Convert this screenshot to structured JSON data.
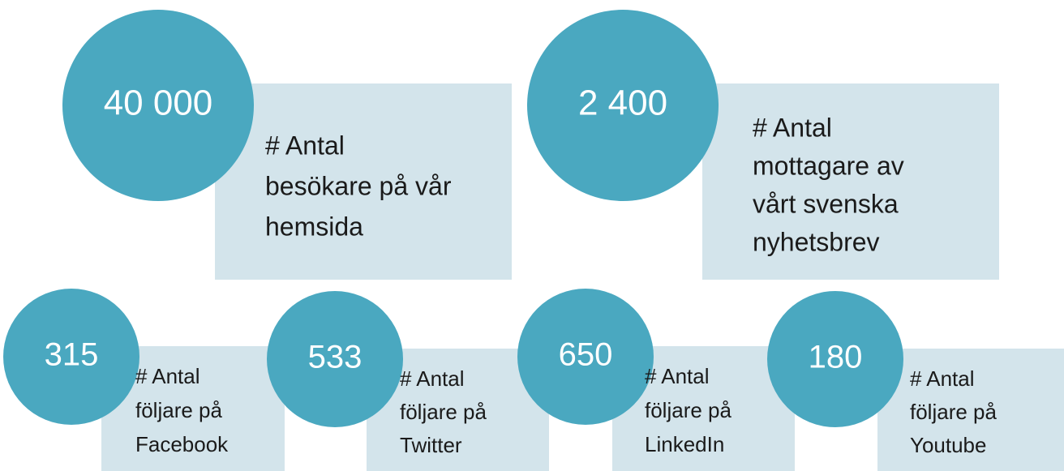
{
  "items": [
    {
      "value": "40 000",
      "label": [
        "# Antal",
        "besökare på vår",
        "hemsida"
      ]
    },
    {
      "value": "2 400",
      "label": [
        "# Antal",
        "mottagare av",
        "vårt svenska",
        "nyhetsbrev"
      ]
    },
    {
      "value": "315",
      "label": [
        "# Antal",
        "följare på",
        "Facebook"
      ]
    },
    {
      "value": "533",
      "label": [
        "# Antal",
        "följare på",
        "Twitter"
      ]
    },
    {
      "value": "650",
      "label": [
        "# Antal",
        "följare på",
        "LinkedIn"
      ]
    },
    {
      "value": "180",
      "label": [
        "# Antal",
        "följare på",
        "Youtube"
      ]
    }
  ]
}
